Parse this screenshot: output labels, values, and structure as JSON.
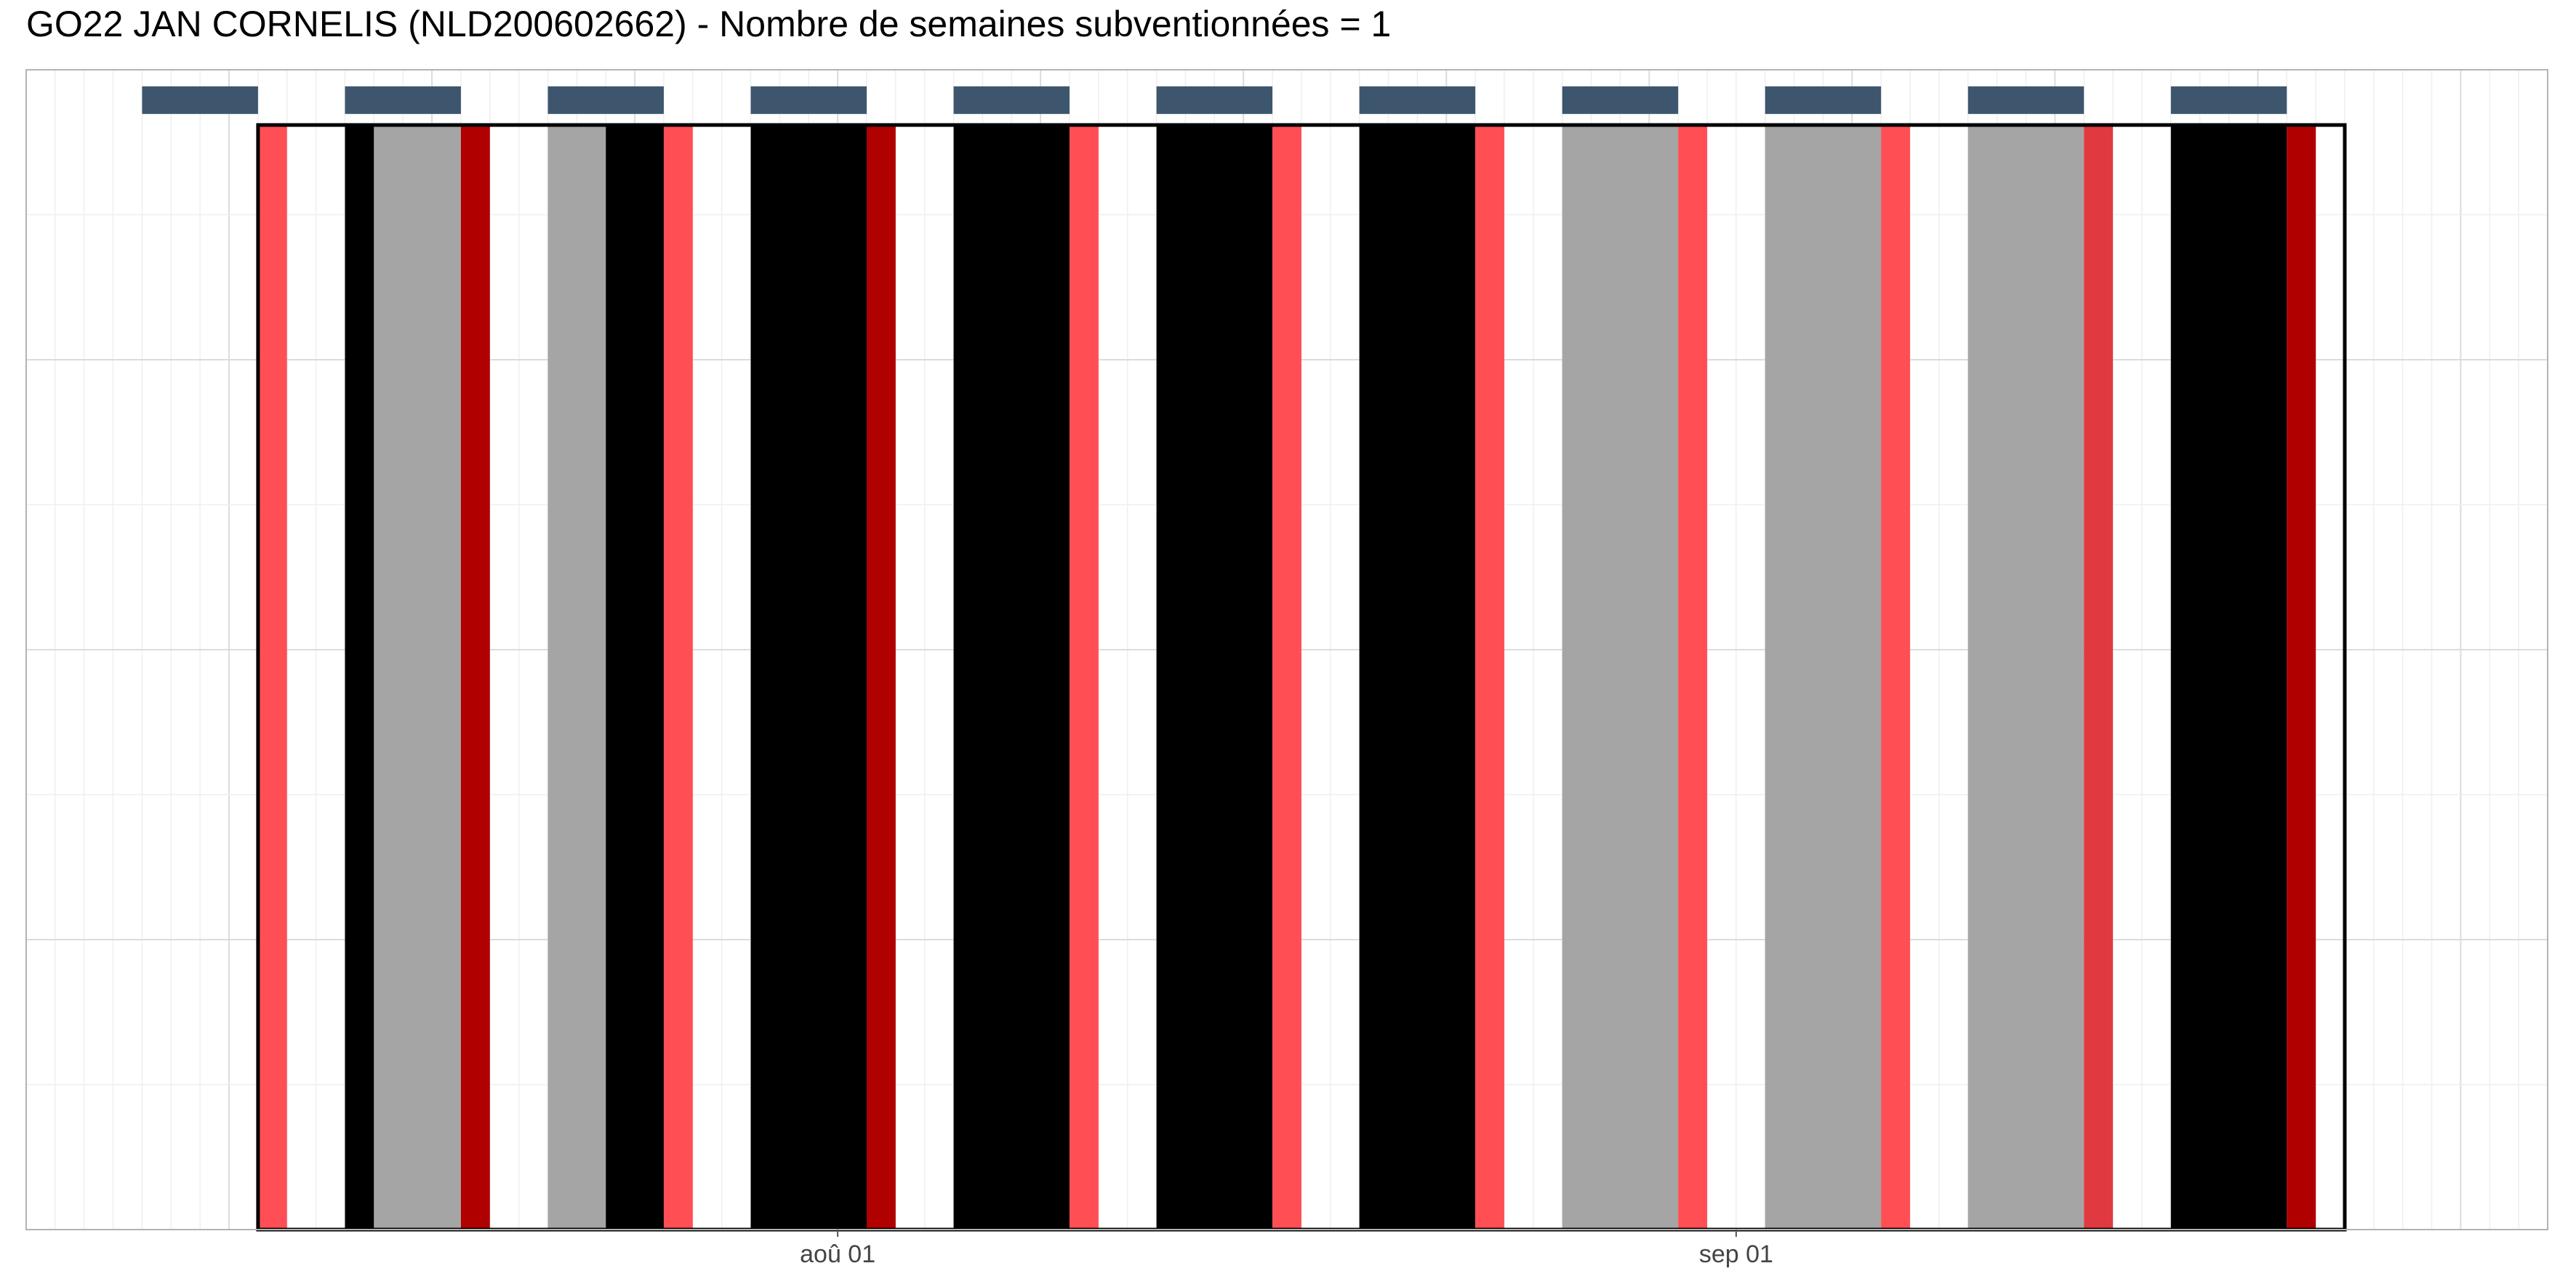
{
  "chart_data": {
    "type": "bar",
    "title": "GO22 JAN CORNELIS (NLD200602662) - Nombre de semaines subventionnées = 1",
    "subtitle": "",
    "xlabel": "",
    "ylabel": "",
    "x_axis": {
      "type": "date",
      "range": [
        "2024-07-04",
        "2024-09-29"
      ],
      "ticks": [
        {
          "date": "2024-08-01",
          "label": "aoû 01"
        },
        {
          "date": "2024-09-01",
          "label": "sep 01"
        }
      ]
    },
    "y_axis": {
      "range": [
        0,
        1.05
      ],
      "tick_labels_shown": false
    },
    "grid": true,
    "legend": "none",
    "colors": {
      "active": "#000000",
      "inactive": "#a5a5a5",
      "port_light": "#ff4f55",
      "port_dark": "#b00000",
      "port_mid": "#e03a40",
      "week": "#3d566e",
      "frame": "#000000",
      "grid_major": "#dcdcdc",
      "grid_minor": "#efefef",
      "panel_border": "#b3b3b3"
    },
    "frame": {
      "start": "2024-07-12",
      "end": "2024-09-22"
    },
    "weeks": [
      {
        "start": "2024-07-08",
        "end": "2024-07-12"
      },
      {
        "start": "2024-07-15",
        "end": "2024-07-19"
      },
      {
        "start": "2024-07-22",
        "end": "2024-07-26"
      },
      {
        "start": "2024-07-29",
        "end": "2024-08-02"
      },
      {
        "start": "2024-08-05",
        "end": "2024-08-09"
      },
      {
        "start": "2024-08-12",
        "end": "2024-08-16"
      },
      {
        "start": "2024-08-19",
        "end": "2024-08-23"
      },
      {
        "start": "2024-08-26",
        "end": "2024-08-30"
      },
      {
        "start": "2024-09-02",
        "end": "2024-09-06"
      },
      {
        "start": "2024-09-09",
        "end": "2024-09-13"
      },
      {
        "start": "2024-09-16",
        "end": "2024-09-20"
      }
    ],
    "activity_segments": [
      {
        "start": "2024-07-15",
        "end": "2024-07-16",
        "status": "active"
      },
      {
        "start": "2024-07-16",
        "end": "2024-07-19",
        "status": "inactive"
      },
      {
        "start": "2024-07-22",
        "end": "2024-07-24",
        "status": "inactive"
      },
      {
        "start": "2024-07-24",
        "end": "2024-07-26",
        "status": "active"
      },
      {
        "start": "2024-07-29",
        "end": "2024-08-02",
        "status": "active"
      },
      {
        "start": "2024-08-05",
        "end": "2024-08-09",
        "status": "active"
      },
      {
        "start": "2024-08-12",
        "end": "2024-08-16",
        "status": "active"
      },
      {
        "start": "2024-08-19",
        "end": "2024-08-23",
        "status": "active"
      },
      {
        "start": "2024-08-26",
        "end": "2024-08-30",
        "status": "inactive"
      },
      {
        "start": "2024-09-02",
        "end": "2024-09-06",
        "status": "inactive"
      },
      {
        "start": "2024-09-09",
        "end": "2024-09-13",
        "status": "inactive"
      },
      {
        "start": "2024-09-16",
        "end": "2024-09-20",
        "status": "active"
      }
    ],
    "port_days": [
      {
        "start": "2024-07-12",
        "end": "2024-07-13",
        "shade": "light"
      },
      {
        "start": "2024-07-19",
        "end": "2024-07-20",
        "shade": "dark"
      },
      {
        "start": "2024-07-26",
        "end": "2024-07-27",
        "shade": "light"
      },
      {
        "start": "2024-08-02",
        "end": "2024-08-03",
        "shade": "dark"
      },
      {
        "start": "2024-08-09",
        "end": "2024-08-10",
        "shade": "light"
      },
      {
        "start": "2024-08-16",
        "end": "2024-08-17",
        "shade": "light"
      },
      {
        "start": "2024-08-23",
        "end": "2024-08-24",
        "shade": "light"
      },
      {
        "start": "2024-08-30",
        "end": "2024-08-31",
        "shade": "light"
      },
      {
        "start": "2024-09-06",
        "end": "2024-09-07",
        "shade": "light"
      },
      {
        "start": "2024-09-13",
        "end": "2024-09-14",
        "shade": "mid"
      },
      {
        "start": "2024-09-20",
        "end": "2024-09-21",
        "shade": "dark"
      }
    ]
  }
}
